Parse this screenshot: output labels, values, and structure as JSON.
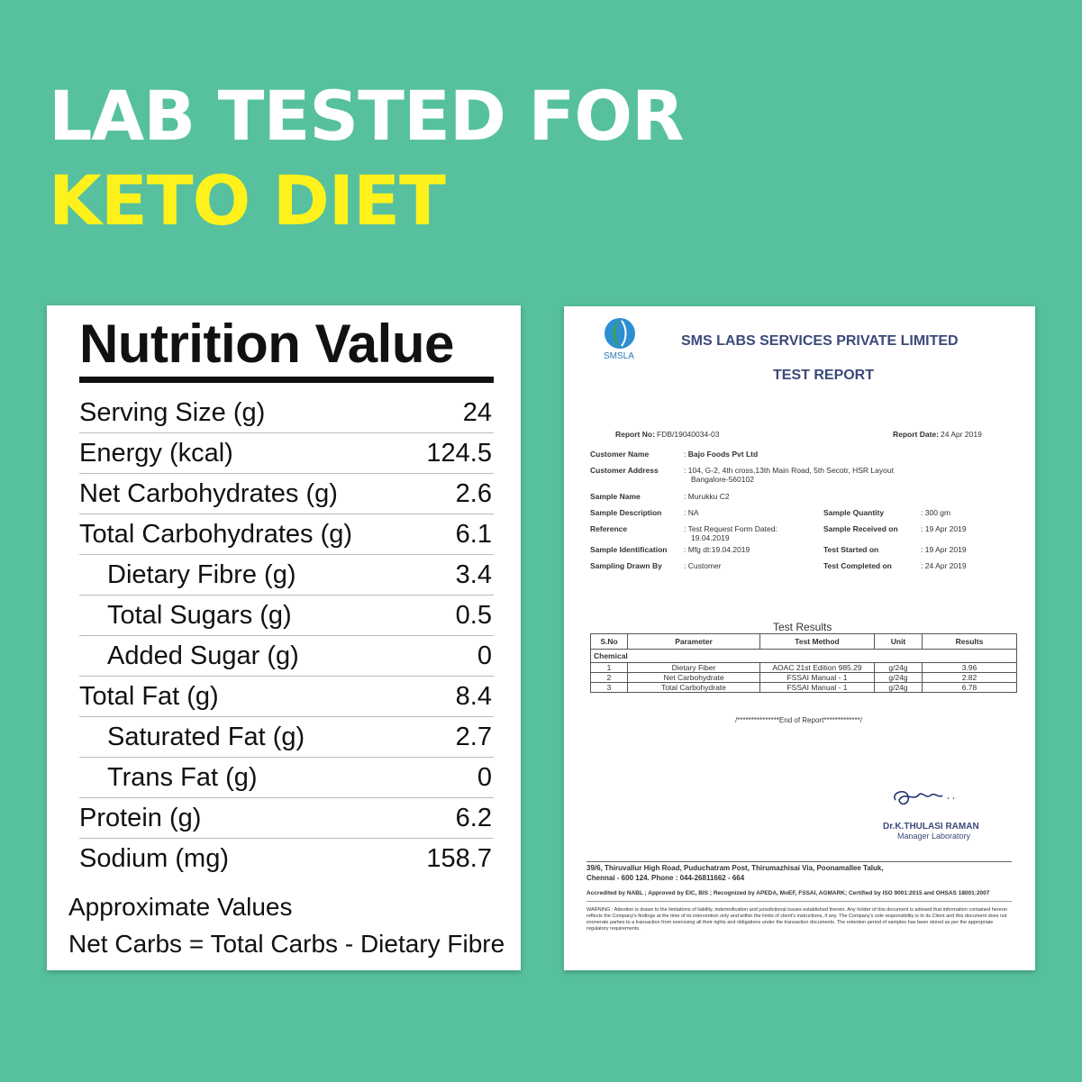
{
  "headline": {
    "line1": "LAB TESTED FOR",
    "line2": "KETO DIET"
  },
  "nutrition": {
    "title": "Nutrition Value",
    "rows": [
      {
        "label": "Serving Size (g)",
        "value": "24",
        "indent": false
      },
      {
        "label": "Energy (kcal)",
        "value": "124.5",
        "indent": false
      },
      {
        "label": "Net Carbohydrates (g)",
        "value": "2.6",
        "indent": false
      },
      {
        "label": "Total Carbohydrates (g)",
        "value": "6.1",
        "indent": false
      },
      {
        "label": "Dietary Fibre (g)",
        "value": "3.4",
        "indent": true
      },
      {
        "label": "Total Sugars (g)",
        "value": "0.5",
        "indent": true
      },
      {
        "label": "Added Sugar (g)",
        "value": "0",
        "indent": true
      },
      {
        "label": "Total Fat (g)",
        "value": "8.4",
        "indent": false
      },
      {
        "label": "Saturated Fat (g)",
        "value": "2.7",
        "indent": true
      },
      {
        "label": "Trans Fat (g)",
        "value": "0",
        "indent": true
      },
      {
        "label": "Protein (g)",
        "value": "6.2",
        "indent": false
      },
      {
        "label": "Sodium (mg)",
        "value": "158.7",
        "indent": false
      }
    ],
    "note1": "Approximate Values",
    "note2": "Net Carbs = Total Carbs - Dietary Fibre"
  },
  "report": {
    "logo_text": "SMSLA",
    "lab_name": "SMS LABS SERVICES PRIVATE LIMITED",
    "title": "TEST REPORT",
    "report_no_label": "Report No:",
    "report_no": "FDB/19040034-03",
    "report_date_label": "Report Date:",
    "report_date": "24 Apr 2019",
    "customer_name_label": "Customer Name",
    "customer_name": "Bajo Foods Pvt Ltd",
    "customer_address_label": "Customer Address",
    "customer_address_1": "104, G-2, 4th cross,13th Main Road, 5th Secotr, HSR Layout",
    "customer_address_2": "Bangalore-560102",
    "sample_name_label": "Sample Name",
    "sample_name": "Murukku C2",
    "sample_description_label": "Sample Description",
    "sample_description": "NA",
    "sample_quantity_label": "Sample Quantity",
    "sample_quantity": "300 gm",
    "reference_label": "Reference",
    "reference_1": "Test Request Form Dated:",
    "reference_2": "19.04.2019",
    "sample_received_label": "Sample Received on",
    "sample_received": "19 Apr 2019",
    "sample_identification_label": "Sample Identification",
    "sample_identification": "Mfg dt:19.04.2019",
    "test_started_label": "Test Started on",
    "test_started": "19 Apr 2019",
    "sampling_drawn_label": "Sampling Drawn By",
    "sampling_drawn": "Customer",
    "test_completed_label": "Test Completed on",
    "test_completed": "24 Apr 2019",
    "results_title": "Test Results",
    "columns": [
      "S.No",
      "Parameter",
      "Test Method",
      "Unit",
      "Results"
    ],
    "section": "Chemical",
    "results": [
      {
        "sno": "1",
        "parameter": "Dietary Fiber",
        "method": "AOAC 21st Edition 985.29",
        "unit": "g/24g",
        "result": "3.96"
      },
      {
        "sno": "2",
        "parameter": "Net Carbohydrate",
        "method": "FSSAI Manual - 1",
        "unit": "g/24g",
        "result": "2.82"
      },
      {
        "sno": "3",
        "parameter": "Total Carbohydrate",
        "method": "FSSAI Manual - 1",
        "unit": "g/24g",
        "result": "6.78"
      }
    ],
    "end_of_report": "/***************End of Report*************/",
    "signer_name": "Dr.K.THULASI RAMAN",
    "signer_role": "Manager Laboratory",
    "address_1": "39/6, Thiruvallur High Road, Puduchatram Post, Thirumazhisai Via, Poonamallee Taluk,",
    "address_2": "Chennai - 600 124. Phone : 044-26811662 - 664",
    "accreditation": "Accredited by NABL ; Approved by EIC, BIS ; Recognized by APEDA, MoEF, FSSAI, AGMARK; Certified by ISO 9001:2015 and OHSAS 18001:2007",
    "warning": "WARNING : Attention is drawn to the limitations of liability, indemnification and jurisdictional issues established therein. Any holder of this document is advised that information contained hereon reflects the Company's findings at the time of its intervention only and within the limits of client's instructions, if any. The Company's sole responsibility is to its Client and this document does not exonerate parties to a transaction from exercising all their rights and obligations under the transaction documents. The retention period of samples has been stored as per the appropriate regulatory requirements."
  }
}
